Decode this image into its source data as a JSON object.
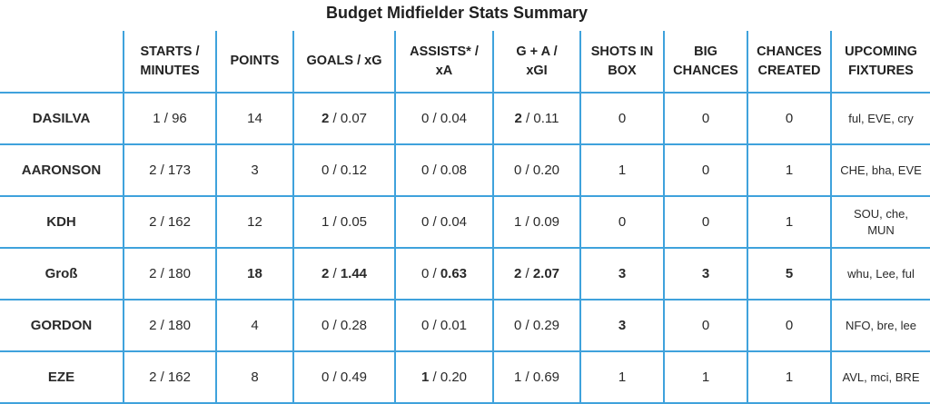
{
  "title": "Budget Midfielder Stats Summary",
  "headers": {
    "player": "",
    "starts": [
      "STARTS /",
      "MINUTES"
    ],
    "points": "POINTS",
    "goals": "GOALS / xG",
    "assists": [
      "ASSISTS* /",
      "xA"
    ],
    "ga": [
      "G + A /",
      "xGI"
    ],
    "shots": [
      "SHOTS IN",
      "BOX"
    ],
    "big": [
      "BIG",
      "CHANCES"
    ],
    "created": [
      "CHANCES",
      "CREATED"
    ],
    "fixtures": [
      "UPCOMING",
      "FIXTURES"
    ]
  },
  "separator": " / ",
  "rows": [
    {
      "name": "DASILVA",
      "starts": "1 / 96",
      "points": "14",
      "goals": [
        "2",
        "0.07"
      ],
      "assists": [
        "0",
        "0.04"
      ],
      "ga": [
        "2",
        "0.11"
      ],
      "shots": "0",
      "big": "0",
      "created": "0",
      "fixtures": [
        "ful, EVE, cry"
      ]
    },
    {
      "name": "AARONSON",
      "starts": "2 / 173",
      "points": "3",
      "goals": [
        "0",
        "0.12"
      ],
      "assists": [
        "0",
        "0.08"
      ],
      "ga": [
        "0",
        "0.20"
      ],
      "shots": "1",
      "big": "0",
      "created": "1",
      "fixtures": [
        "CHE, bha, EVE"
      ]
    },
    {
      "name": "KDH",
      "starts": "2 / 162",
      "points": "12",
      "goals": [
        "1",
        "0.05"
      ],
      "assists": [
        "0",
        "0.04"
      ],
      "ga": [
        "1",
        "0.09"
      ],
      "shots": "0",
      "big": "0",
      "created": "1",
      "fixtures": [
        "SOU, che,",
        "MUN"
      ]
    },
    {
      "name": "Groß",
      "starts": "2 / 180",
      "points": "18",
      "goals": [
        "2",
        "1.44"
      ],
      "assists": [
        "0",
        "0.63"
      ],
      "ga": [
        "2",
        "2.07"
      ],
      "shots": "3",
      "big": "3",
      "created": "5",
      "fixtures": [
        "whu, Lee, ful"
      ]
    },
    {
      "name": "GORDON",
      "starts": "2 / 180",
      "points": "4",
      "goals": [
        "0",
        "0.28"
      ],
      "assists": [
        "0",
        "0.01"
      ],
      "ga": [
        "0",
        "0.29"
      ],
      "shots": "3",
      "big": "0",
      "created": "0",
      "fixtures": [
        "NFO, bre, lee"
      ]
    },
    {
      "name": "EZE",
      "starts": "2 / 162",
      "points": "8",
      "goals": [
        "0",
        "0.49"
      ],
      "assists": [
        "1",
        "0.20"
      ],
      "ga": [
        "1",
        "0.69"
      ],
      "shots": "1",
      "big": "1",
      "created": "1",
      "fixtures": [
        "AVL, mci, BRE"
      ]
    }
  ],
  "bold": {
    "points": [
      3
    ],
    "goals_a": [
      0,
      3
    ],
    "goals_b": [
      3
    ],
    "assists_a": [
      5
    ],
    "assists_b": [
      3
    ],
    "ga_a": [
      0,
      3
    ],
    "ga_b": [
      3
    ],
    "shots": [
      3,
      4
    ],
    "big": [
      3
    ],
    "created": [
      3
    ]
  },
  "colors": {
    "accent": "#3fa2dc"
  }
}
